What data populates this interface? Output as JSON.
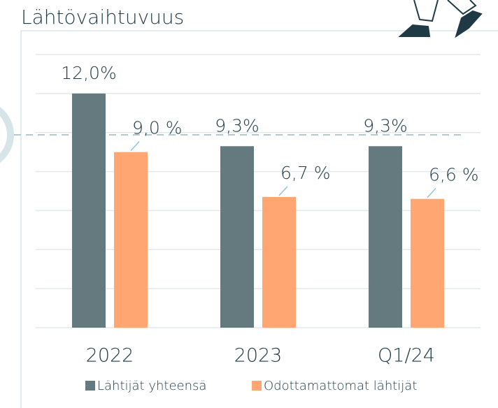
{
  "chart_data": {
    "type": "bar",
    "title": "Lähtövaihtuvuus",
    "categories": [
      "2022",
      "2023",
      "Q1/24"
    ],
    "series": [
      {
        "name": "Lähtijät yhteensä",
        "color": "#647a7f",
        "values": [
          12.0,
          9.3,
          9.3
        ],
        "value_labels": [
          "12,0%",
          "9,3%",
          "9,3%"
        ]
      },
      {
        "name": "Odottamattomat lähtijät",
        "color": "#ffa673",
        "values": [
          9.0,
          6.7,
          6.6
        ],
        "value_labels": [
          "9,0 %",
          "6,7 %",
          "6,6 %"
        ]
      }
    ],
    "ylim": [
      0,
      14
    ],
    "yticks": [
      0,
      2,
      4,
      6,
      8,
      10,
      12,
      14
    ],
    "grid": true
  }
}
